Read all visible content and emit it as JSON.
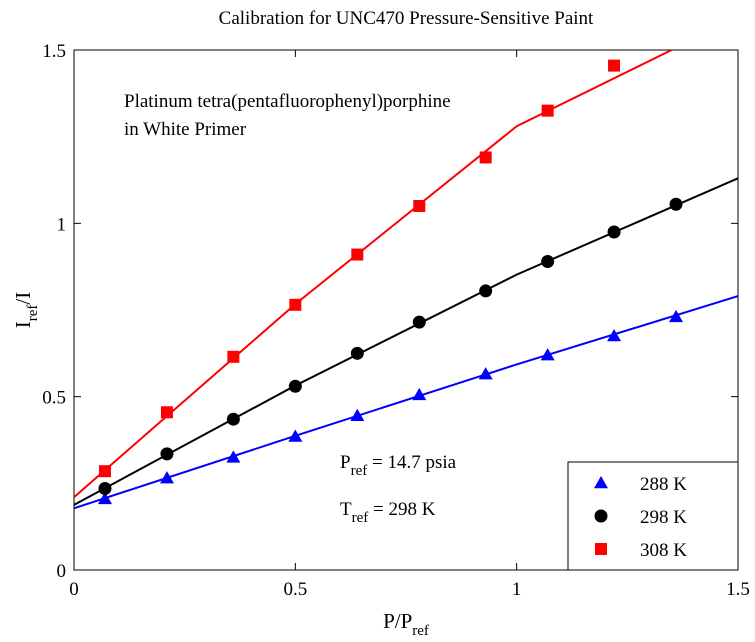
{
  "chart_data": {
    "type": "scatter",
    "title": "Calibration for UNC470 Pressure-Sensitive Paint",
    "xlabel": {
      "main": "P/P",
      "sub": "ref"
    },
    "ylabel": {
      "main": "I",
      "sub": "ref",
      "tail": "/I"
    },
    "xlim": [
      0,
      1.5
    ],
    "ylim": [
      0,
      1.5
    ],
    "xticks": [
      0,
      0.5,
      1,
      1.5
    ],
    "yticks": [
      0,
      0.5,
      1,
      1.5
    ],
    "xtick_labels": [
      "0",
      "0.5",
      "1",
      "1.5"
    ],
    "ytick_labels": [
      "0",
      "0.5",
      "1",
      "1.5"
    ],
    "grid": false,
    "legend_position": "bottom-right",
    "annotations": {
      "paint_line1": "Platinum tetra(pentafluorophenyl)porphine",
      "paint_line2": "in White Primer",
      "pref": {
        "main": "P",
        "sub": "ref",
        "tail": " = 14.7 psia"
      },
      "tref": {
        "main": "T",
        "sub": "ref",
        "tail": " = 298 K"
      }
    },
    "series": [
      {
        "name": "288 K",
        "color": "#0000ff",
        "marker": "triangle",
        "x": [
          0.07,
          0.21,
          0.36,
          0.5,
          0.64,
          0.78,
          0.93,
          1.07,
          1.22,
          1.36
        ],
        "y": [
          0.205,
          0.265,
          0.325,
          0.385,
          0.445,
          0.505,
          0.565,
          0.62,
          0.675,
          0.73
        ],
        "fit": [
          [
            0,
            0.178
          ],
          [
            0.5,
            0.387
          ],
          [
            1.0,
            0.593
          ],
          [
            1.5,
            0.79
          ]
        ]
      },
      {
        "name": "298 K",
        "color": "#000000",
        "marker": "circle",
        "x": [
          0.07,
          0.21,
          0.36,
          0.5,
          0.64,
          0.78,
          0.93,
          1.07,
          1.22,
          1.36
        ],
        "y": [
          0.235,
          0.335,
          0.435,
          0.53,
          0.625,
          0.715,
          0.805,
          0.89,
          0.975,
          1.055
        ],
        "fit": [
          [
            0,
            0.188
          ],
          [
            0.5,
            0.532
          ],
          [
            1.0,
            0.852
          ],
          [
            1.5,
            1.13
          ]
        ]
      },
      {
        "name": "308 K",
        "color": "#ff0000",
        "marker": "square",
        "x": [
          0.07,
          0.21,
          0.36,
          0.5,
          0.64,
          0.78,
          0.93,
          1.07,
          1.22
        ],
        "y": [
          0.285,
          0.455,
          0.615,
          0.765,
          0.91,
          1.05,
          1.19,
          1.325,
          1.455
        ],
        "fit": [
          [
            0,
            0.21
          ],
          [
            0.5,
            0.767
          ],
          [
            1.0,
            1.28
          ],
          [
            1.35,
            1.5
          ]
        ]
      }
    ]
  }
}
